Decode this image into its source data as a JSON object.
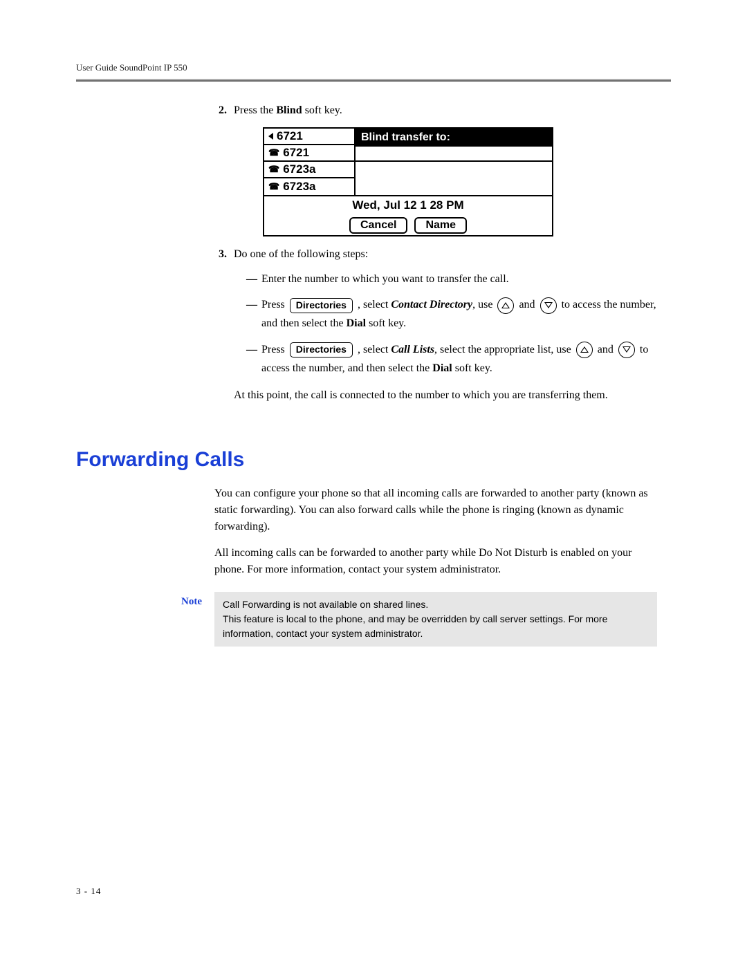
{
  "header": {
    "text": "User Guide SoundPoint IP 550"
  },
  "colors": {
    "accent": "#1a3fd6",
    "note_bg": "#e6e6e6",
    "text": "#000000",
    "bg": "#ffffff"
  },
  "steps": {
    "s2": {
      "num": "2.",
      "prefix": "Press the ",
      "key": "Blind",
      "suffix": " soft key."
    },
    "s3": {
      "num": "3.",
      "lead": "Do one of the following steps:",
      "bullets": {
        "b1": "Enter the number to which you want to transfer the call.",
        "b2": {
          "t1": "Press ",
          "btn": "Directories",
          "t2": " , select ",
          "cd": "Contact Directory",
          "t3": ", use ",
          "t4": " and ",
          "t5": " to access the number, and then select the ",
          "dial": "Dial",
          "t6": " soft key."
        },
        "b3": {
          "t1": "Press ",
          "btn": "Directories",
          "t2": " , select ",
          "cl": "Call Lists",
          "t3": ", select the appropriate list, use ",
          "t4": " and ",
          "t5": " to access the number, and then select the ",
          "dial": "Dial",
          "t6": " soft key."
        }
      },
      "closing": "At this point, the call is connected to the number to which you are transferring them."
    }
  },
  "phone_screen": {
    "lines": [
      "6721",
      "6721",
      "6723a",
      "6723a"
    ],
    "line_icons": [
      "speaker",
      "phone",
      "phone",
      "phone"
    ],
    "title_bar": "Blind transfer to:",
    "datetime": "Wed, Jul 12  1 28 PM",
    "softkeys": [
      "Cancel",
      "Name"
    ]
  },
  "section": {
    "heading": "Forwarding Calls",
    "p1": "You can configure your phone so that all incoming calls are forwarded to another party (known as static forwarding). You can also forward calls while the phone is ringing (known as dynamic forwarding).",
    "p2": "All incoming calls can be forwarded to another party while Do Not Disturb is enabled on your phone. For more information, contact your system administrator."
  },
  "note": {
    "label": "Note",
    "line1": "Call Forwarding is not available on shared lines.",
    "line2": "This feature is local to the phone, and may be overridden by call server settings. For more information, contact your system administrator."
  },
  "page_number": "3 - 14"
}
